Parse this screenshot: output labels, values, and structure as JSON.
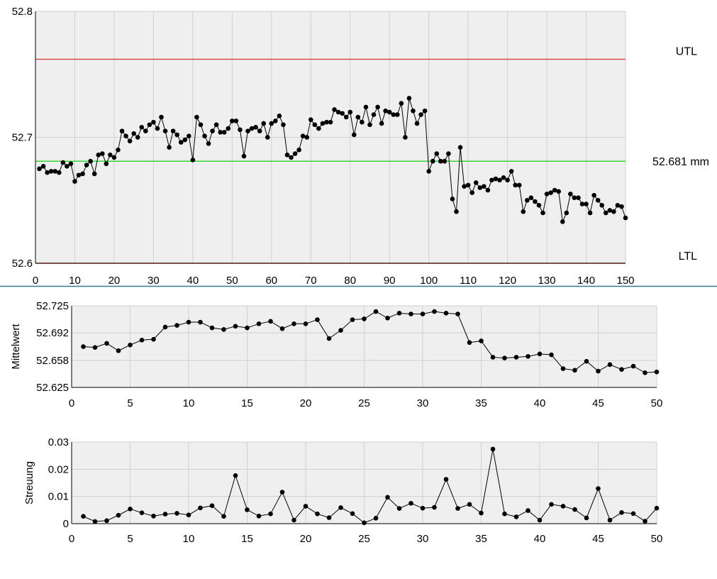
{
  "colors": {
    "plot_bg": "#efefef",
    "grid": "#d0d0d0",
    "series": "#000000",
    "tolerance_line": "#e04a4a",
    "mean_line": "#33d633",
    "separator": "#3d7a8a"
  },
  "chart_data": [
    {
      "type": "line",
      "xlim": [
        0,
        150
      ],
      "ylim": [
        52.6,
        52.8
      ],
      "xticks": [
        0,
        10,
        20,
        30,
        40,
        50,
        60,
        70,
        80,
        90,
        100,
        110,
        120,
        130,
        140,
        150
      ],
      "xtick_labels": [
        "0",
        "10",
        "20",
        "30",
        "40",
        "50",
        "60",
        "70",
        "80",
        "90",
        "100",
        "110",
        "120",
        "130",
        "140",
        "150"
      ],
      "yticks": [
        52.6,
        52.7,
        52.8
      ],
      "ytick_labels": [
        "52.6",
        "52.7",
        "52.8"
      ],
      "grid": true,
      "reference_lines": [
        {
          "name": "UTL",
          "label": "UTL",
          "value": 52.762,
          "color": "#e04a4a"
        },
        {
          "name": "mean",
          "label": "52.681 mm",
          "value": 52.681,
          "color": "#33d633"
        },
        {
          "name": "LTL",
          "label": "LTL",
          "value": 52.6,
          "color": "#e04a4a"
        }
      ],
      "series": [
        {
          "values": [
            52.675,
            52.677,
            52.672,
            52.673,
            52.673,
            52.672,
            52.68,
            52.677,
            52.679,
            52.665,
            52.67,
            52.671,
            52.678,
            52.681,
            52.671,
            52.686,
            52.687,
            52.679,
            52.686,
            52.684,
            52.69,
            52.705,
            52.701,
            52.697,
            52.703,
            52.7,
            52.708,
            52.705,
            52.71,
            52.712,
            52.707,
            52.716,
            52.705,
            52.692,
            52.705,
            52.702,
            52.696,
            52.698,
            52.701,
            52.682,
            52.716,
            52.71,
            52.701,
            52.695,
            52.705,
            52.71,
            52.704,
            52.704,
            52.707,
            52.713,
            52.713,
            52.706,
            52.685,
            52.705,
            52.707,
            52.708,
            52.705,
            52.711,
            52.7,
            52.711,
            52.713,
            52.717,
            52.71,
            52.686,
            52.684,
            52.687,
            52.69,
            52.701,
            52.7,
            52.714,
            52.71,
            52.707,
            52.711,
            52.712,
            52.712,
            52.722,
            52.72,
            52.719,
            52.716,
            52.72,
            52.702,
            52.716,
            52.712,
            52.724,
            52.71,
            52.718,
            52.724,
            52.711,
            52.721,
            52.72,
            52.718,
            52.718,
            52.727,
            52.7,
            52.731,
            52.721,
            52.711,
            52.718,
            52.721,
            52.673,
            52.681,
            52.687,
            52.681,
            52.681,
            52.687,
            52.651,
            52.641,
            52.692,
            52.661,
            52.662,
            52.656,
            52.664,
            52.66,
            52.661,
            52.658,
            52.666,
            52.667,
            52.666,
            52.668,
            52.666,
            52.673,
            52.662,
            52.662,
            52.641,
            52.65,
            52.652,
            52.649,
            52.646,
            52.64,
            52.655,
            52.656,
            52.658,
            52.657,
            52.633,
            52.64,
            52.655,
            52.652,
            52.652,
            52.647,
            52.647,
            52.64,
            52.654,
            52.65,
            52.646,
            52.64,
            52.642,
            52.641,
            52.646,
            52.645,
            52.636
          ]
        }
      ]
    },
    {
      "type": "line",
      "ylabel": "Mittelwert",
      "xlim": [
        0,
        50
      ],
      "ylim": [
        52.625,
        52.725
      ],
      "xticks": [
        0,
        5,
        10,
        15,
        20,
        25,
        30,
        35,
        40,
        45,
        50
      ],
      "xtick_labels": [
        "0",
        "5",
        "10",
        "15",
        "20",
        "25",
        "30",
        "35",
        "40",
        "45",
        "50"
      ],
      "yticks": [
        52.625,
        52.658,
        52.692,
        52.725
      ],
      "ytick_labels": [
        "52.625",
        "52.658",
        "52.692",
        "52.725"
      ],
      "grid": true,
      "series": [
        {
          "values": [
            52.675,
            52.674,
            52.679,
            52.67,
            52.677,
            52.683,
            52.684,
            52.699,
            52.701,
            52.705,
            52.705,
            52.698,
            52.696,
            52.7,
            52.698,
            52.703,
            52.706,
            52.697,
            52.703,
            52.703,
            52.708,
            52.685,
            52.695,
            52.708,
            52.709,
            52.718,
            52.71,
            52.716,
            52.715,
            52.715,
            52.718,
            52.716,
            52.715,
            52.68,
            52.682,
            52.662,
            52.661,
            52.662,
            52.663,
            52.666,
            52.665,
            52.648,
            52.646,
            52.657,
            52.645,
            52.653,
            52.647,
            52.651,
            52.643,
            52.644
          ]
        }
      ]
    },
    {
      "type": "line",
      "ylabel": "Streuung",
      "xlim": [
        0,
        50
      ],
      "ylim": [
        0,
        0.03
      ],
      "xticks": [
        0,
        5,
        10,
        15,
        20,
        25,
        30,
        35,
        40,
        45,
        50
      ],
      "xtick_labels": [
        "0",
        "5",
        "10",
        "15",
        "20",
        "25",
        "30",
        "35",
        "40",
        "45",
        "50"
      ],
      "yticks": [
        0,
        0.01,
        0.02,
        0.03
      ],
      "ytick_labels": [
        "0",
        "0.01",
        "0.02",
        "0.03"
      ],
      "grid": true,
      "series": [
        {
          "values": [
            0.0027,
            0.0008,
            0.0011,
            0.0031,
            0.0054,
            0.004,
            0.0028,
            0.0035,
            0.0038,
            0.0032,
            0.0058,
            0.0066,
            0.0027,
            0.0177,
            0.0051,
            0.0028,
            0.0036,
            0.0116,
            0.0013,
            0.0064,
            0.0036,
            0.0022,
            0.0059,
            0.0037,
            0.0003,
            0.002,
            0.0097,
            0.0056,
            0.0075,
            0.0057,
            0.006,
            0.0163,
            0.0056,
            0.0071,
            0.0039,
            0.0274,
            0.0036,
            0.0025,
            0.0048,
            0.0013,
            0.0071,
            0.0064,
            0.0052,
            0.0021,
            0.0129,
            0.0013,
            0.0041,
            0.0037,
            0.0009,
            0.0057
          ]
        }
      ]
    }
  ]
}
